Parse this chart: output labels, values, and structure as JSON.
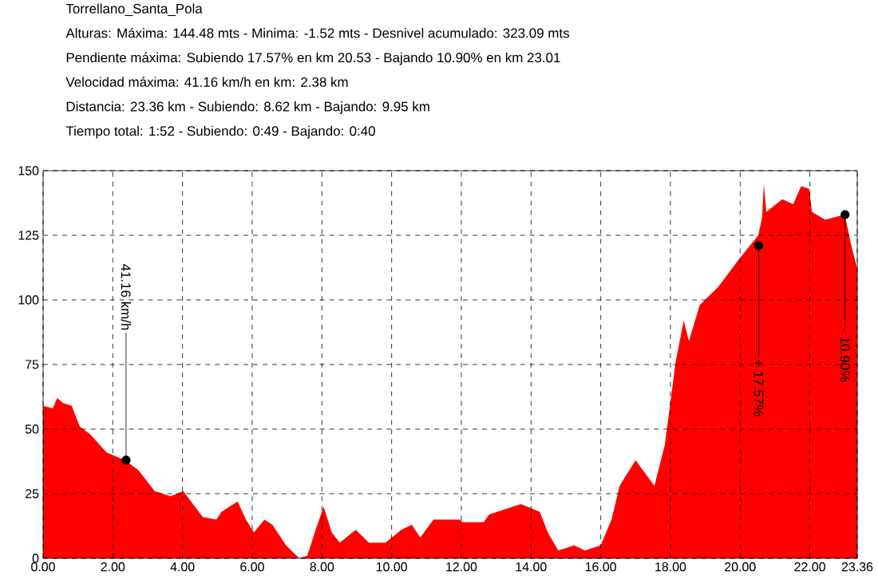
{
  "chart_data": {
    "type": "area",
    "title": "Torrellano_Santa_Pola",
    "annotations": [
      "Alturas: Máxima: 144.48 mts - Minima: -1.52 mts - Desnivel acumulado: 323.09 mts",
      "Pendiente máxima: Subiendo 17.57% en km 20.53 - Bajando 10.90% en km 23.01",
      "Velocidad máxima: 41.16 km/h  en km: 2.38 km",
      "Distancia: 23.36 km - Subiendo: 8.62 km - Bajando: 9.95 km",
      "Tiempo total: 1:52 - Subiendo: 0:49 - Bajando: 0:40",
      {
        "text": "41.16 km/h",
        "x": 2.38,
        "y": 38
      },
      {
        "text": "+ 17.57%",
        "x": 20.53,
        "y": 121
      },
      {
        "text": "- 10.90%",
        "x": 23.01,
        "y": 133
      }
    ],
    "x": [
      0,
      0.28,
      0.4,
      0.58,
      0.82,
      1.05,
      1.35,
      1.82,
      2.35,
      2.74,
      3.2,
      3.66,
      4.02,
      4.58,
      4.97,
      5.12,
      5.58,
      5.82,
      6.05,
      6.35,
      6.58,
      6.97,
      7.35,
      7.58,
      7.82,
      8.05,
      8.28,
      8.51,
      8.97,
      9.35,
      9.82,
      10.28,
      10.58,
      10.82,
      11.2,
      11.97,
      12.03,
      12.64,
      12.8,
      13.71,
      14.25,
      14.48,
      14.78,
      15.24,
      15.55,
      16.0,
      16.31,
      16.54,
      17.0,
      17.54,
      17.84,
      18.15,
      18.38,
      18.53,
      18.84,
      19.37,
      19.98,
      20.52,
      20.63,
      20.68,
      20.75,
      21.21,
      21.52,
      21.75,
      21.98,
      22.06,
      22.44,
      23.0,
      23.19,
      23.36
    ],
    "values": [
      59,
      58,
      62,
      60,
      59,
      51,
      48,
      41,
      38,
      34,
      26,
      24,
      26,
      16,
      15,
      18,
      22,
      15,
      10,
      15,
      13,
      5,
      0,
      1,
      11,
      20,
      10,
      6,
      11,
      6,
      6,
      11,
      13,
      8,
      15,
      15,
      14,
      14,
      17,
      21,
      18,
      10,
      3,
      5,
      3,
      5,
      15,
      28,
      38,
      28,
      44,
      76,
      92,
      84,
      98,
      105,
      116,
      125,
      132,
      145,
      134,
      139,
      137,
      144,
      143,
      134,
      131,
      133,
      121,
      112
    ],
    "color": "#ff0000",
    "xlim": [
      0,
      23.36
    ],
    "xticks": [
      {
        "value": 0,
        "label": "0.00"
      },
      {
        "value": 2,
        "label": "2.00"
      },
      {
        "value": 4,
        "label": "4.00"
      },
      {
        "value": 6,
        "label": "6.00"
      },
      {
        "value": 8,
        "label": "8.00"
      },
      {
        "value": 10,
        "label": "10.00"
      },
      {
        "value": 12,
        "label": "12.00"
      },
      {
        "value": 14,
        "label": "14.00"
      },
      {
        "value": 16,
        "label": "16.00"
      },
      {
        "value": 18,
        "label": "18.00"
      },
      {
        "value": 20,
        "label": "20.00"
      },
      {
        "value": 22,
        "label": "22.00"
      },
      {
        "value": 23.36,
        "label": "23.36"
      }
    ],
    "ylim": [
      0,
      150
    ],
    "yticks": [
      0,
      25,
      50,
      75,
      100,
      125,
      150
    ],
    "grid": true
  }
}
